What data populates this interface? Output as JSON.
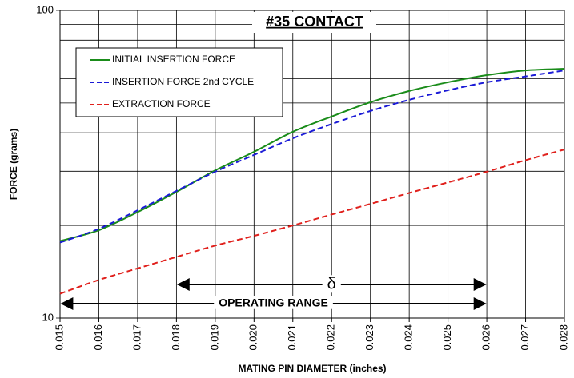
{
  "chart_data": {
    "type": "line",
    "title": "#35 CONTACT",
    "xlabel": "MATING PIN  DIAMETER (inches)",
    "ylabel": "FORCE (grams)",
    "x": [
      0.015,
      0.016,
      0.017,
      0.018,
      0.019,
      0.02,
      0.021,
      0.022,
      0.023,
      0.024,
      0.025,
      0.026,
      0.027,
      0.028
    ],
    "series": [
      {
        "name": "INITIAL INSERTION FORCE",
        "color": "#1a8c1a",
        "dash": false,
        "values": [
          17.8,
          19.3,
          22.1,
          25.7,
          30.2,
          34.7,
          40.3,
          45.2,
          50.3,
          54.7,
          58.4,
          61.6,
          63.8,
          64.6
        ]
      },
      {
        "name": "INSERTION FORCE 2nd CYCLE",
        "color": "#1a1ad6",
        "dash": true,
        "values": [
          17.6,
          19.5,
          22.4,
          25.9,
          29.9,
          33.9,
          38.4,
          42.7,
          47.1,
          51.2,
          55.0,
          58.4,
          61.0,
          63.8
        ]
      },
      {
        "name": "EXTRACTION FORCE",
        "color": "#e0201c",
        "dash": true,
        "values": [
          12.0,
          13.3,
          14.5,
          15.8,
          17.2,
          18.5,
          20.0,
          21.7,
          23.5,
          25.5,
          27.6,
          29.9,
          32.6,
          35.3
        ]
      }
    ],
    "xlim": [
      0.015,
      0.028
    ],
    "xticks": [
      0.015,
      0.016,
      0.017,
      0.018,
      0.019,
      {
        "value": 0.02,
        "label": "0.020"
      },
      0.021,
      0.022,
      0.023,
      0.024,
      0.025,
      0.026,
      0.027,
      0.028
    ],
    "ylim": [
      10,
      100
    ],
    "yticks": [
      10,
      100
    ],
    "yminor": [
      20,
      30,
      40,
      50,
      60,
      70,
      80,
      90
    ],
    "ylog": true,
    "grid": true,
    "annotations": [
      {
        "text": "δ",
        "x": [
          0.018,
          0.026
        ]
      },
      {
        "text": "OPERATING RANGE",
        "x": [
          0.015,
          0.026
        ]
      }
    ]
  }
}
